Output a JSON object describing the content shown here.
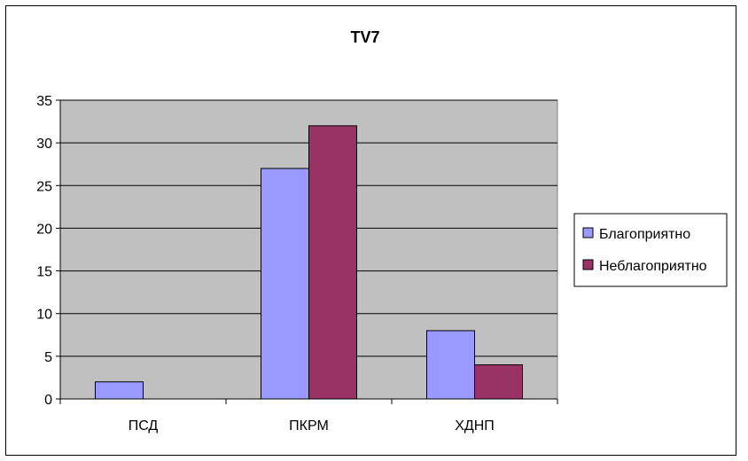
{
  "chart_data": {
    "type": "bar",
    "title": "TV7",
    "xlabel": "",
    "ylabel": "",
    "categories": [
      "ПСД",
      "ПКРМ",
      "ХДНП"
    ],
    "series": [
      {
        "name": "Благоприятно",
        "values": [
          2,
          27,
          8
        ],
        "color": "#9999ff"
      },
      {
        "name": "Неблагоприятно",
        "values": [
          0,
          32,
          4
        ],
        "color": "#993366"
      }
    ],
    "ylim": [
      0,
      35
    ],
    "yticks": [
      0,
      5,
      10,
      15,
      20,
      25,
      30,
      35
    ],
    "grid": true,
    "legend_position": "right",
    "plot_background": "#c0c0c0"
  }
}
